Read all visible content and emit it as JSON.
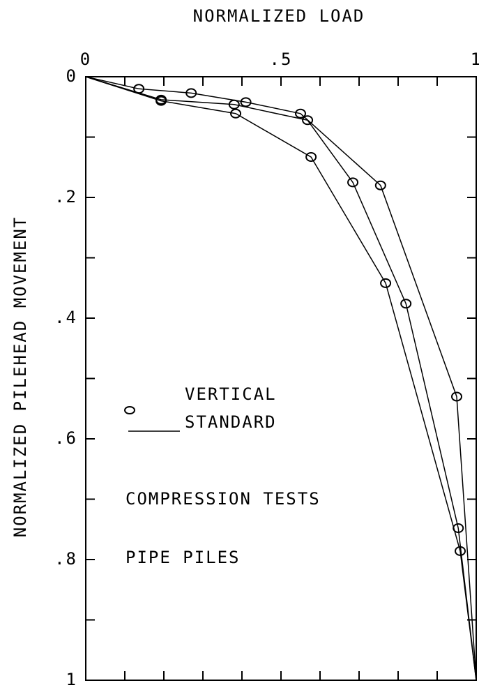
{
  "chart_data": {
    "type": "line",
    "title": "NORMALIZED LOAD",
    "y_label": "NORMALIZED PILEHEAD MOVEMENT",
    "xlim": [
      0,
      1
    ],
    "ylim": [
      0,
      1
    ],
    "y_inverted": true,
    "x_axis_position": "top",
    "xticks": [
      0,
      {
        "value": 0.5,
        "label": ".5"
      },
      1
    ],
    "yticks": [
      0,
      {
        "value": 0.2,
        "label": ".2"
      },
      {
        "value": 0.4,
        "label": ".4"
      },
      {
        "value": 0.6,
        "label": ".6"
      },
      {
        "value": 0.8,
        "label": ".8"
      },
      1
    ],
    "xminorticks": [
      0.1,
      0.2,
      0.3,
      0.4,
      0.6,
      0.7,
      0.8,
      0.9
    ],
    "yminorticks": [
      0.1,
      0.3,
      0.5,
      0.7,
      0.9
    ],
    "color": "#000000",
    "series": [
      {
        "x": [
          0,
          0.136,
          0.27,
          0.41,
          0.55,
          0.755,
          0.95,
          1
        ],
        "values": [
          0,
          0.02,
          0.027,
          0.042,
          0.061,
          0.18,
          0.53,
          1
        ]
      },
      {
        "x": [
          0,
          0.193,
          0.38,
          0.568,
          0.684,
          0.82,
          0.954,
          1
        ],
        "values": [
          0,
          0.038,
          0.046,
          0.072,
          0.175,
          0.376,
          0.748,
          1
        ]
      },
      {
        "x": [
          0,
          0.193,
          0.384,
          0.577,
          0.768,
          0.959,
          1
        ],
        "values": [
          0,
          0.04,
          0.061,
          0.133,
          0.342,
          0.786,
          1
        ]
      }
    ],
    "legend": [
      {
        "label": "VERTICAL",
        "symbol": "marker"
      },
      {
        "label": "STANDARD",
        "symbol": "line"
      }
    ],
    "annotations": [
      "COMPRESSION TESTS",
      "PIPE PILES"
    ]
  }
}
